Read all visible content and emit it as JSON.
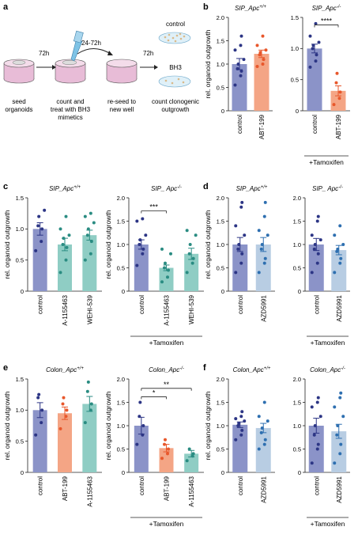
{
  "panels": {
    "a": "a",
    "b": "b",
    "c": "c",
    "d": "d",
    "e": "e",
    "f": "f"
  },
  "schematic": {
    "steps": [
      "seed\norganoids",
      "count and\ntreat with BH3\nmimetics",
      "re-seed to\nnew well",
      "count clonogenic\noutgrowth"
    ],
    "times": [
      "72h",
      "24-72h",
      "72h"
    ],
    "conditions": [
      "control",
      "BH3"
    ]
  },
  "common": {
    "ylabel": "rel. organoid outgrowth",
    "tamoxifen": "+Tamoxifen"
  },
  "colors": {
    "control": "#8b93c8",
    "control_dot": "#2c3585",
    "abt": "#f4a585",
    "abt_dot": "#e8572b",
    "a115": "#8fcdc4",
    "a115_dot": "#2a8c82",
    "wehi": "#8fcdc4",
    "wehi_dot": "#2a8c82",
    "azd": "#b8cde3",
    "azd_dot": "#2e6fb0"
  },
  "chart_data": [
    {
      "id": "b1",
      "type": "bar",
      "title": "SIP_Apc+/+",
      "categories": [
        "control",
        "ABT-199"
      ],
      "values": [
        1.0,
        1.22
      ],
      "errors": [
        0.12,
        0.08
      ],
      "points": [
        [
          0.55,
          0.75,
          0.85,
          0.9,
          1.0,
          1.1,
          1.3,
          1.4,
          1.6
        ],
        [
          0.95,
          1.0,
          1.1,
          1.2,
          1.25,
          1.3,
          1.4,
          1.6
        ]
      ],
      "ylim": [
        0,
        2.0
      ],
      "yticks": [
        0,
        0.5,
        1.0,
        1.5,
        2.0
      ],
      "ylabel": "rel. organoid outgrowth",
      "tamoxifen": false
    },
    {
      "id": "b2",
      "type": "bar",
      "title": "SIP_Apc-/-",
      "categories": [
        "control",
        "ABT-199"
      ],
      "values": [
        1.0,
        0.32
      ],
      "errors": [
        0.07,
        0.08
      ],
      "points": [
        [
          0.7,
          0.8,
          0.9,
          1.0,
          1.05,
          1.1,
          1.2,
          1.4
        ],
        [
          0.1,
          0.2,
          0.3,
          0.45,
          0.6
        ]
      ],
      "ylim": [
        0,
        1.5
      ],
      "yticks": [
        0,
        0.5,
        1.0,
        1.5
      ],
      "annotations": [
        {
          "from": 0,
          "to": 1,
          "label": "****",
          "y": 1.38
        }
      ],
      "tamoxifen": true
    },
    {
      "id": "c1",
      "type": "bar",
      "title": "SIP_Apc+/+",
      "categories": [
        "control",
        "A-1155463",
        "WEHI-539"
      ],
      "values": [
        1.0,
        0.75,
        0.9
      ],
      "errors": [
        0.1,
        0.1,
        0.08
      ],
      "points": [
        [
          0.65,
          0.8,
          1.0,
          1.05,
          1.2,
          1.3
        ],
        [
          0.3,
          0.5,
          0.7,
          0.75,
          0.85,
          0.9,
          1.0,
          1.2
        ],
        [
          0.5,
          0.6,
          0.8,
          0.9,
          1.0,
          1.1,
          1.2,
          1.25
        ]
      ],
      "ylim": [
        0,
        1.5
      ],
      "yticks": [
        0,
        0.5,
        1.0,
        1.5
      ],
      "ylabel": "rel. organoid outgrowth",
      "tamoxifen": false
    },
    {
      "id": "c2",
      "type": "bar",
      "title": "SIP_ Apc-/-",
      "categories": [
        "control",
        "A-1155463",
        "WEHI-539"
      ],
      "values": [
        1.0,
        0.5,
        0.8
      ],
      "errors": [
        0.1,
        0.06,
        0.12
      ],
      "points": [
        [
          0.55,
          0.8,
          0.9,
          1.0,
          1.1,
          1.2,
          1.5,
          1.55
        ],
        [
          0.2,
          0.3,
          0.45,
          0.5,
          0.6,
          0.8,
          0.9
        ],
        [
          0.4,
          0.6,
          0.7,
          0.8,
          1.0,
          1.2,
          1.3
        ]
      ],
      "ylim": [
        0,
        2.0
      ],
      "yticks": [
        0,
        0.5,
        1.0,
        1.5,
        2.0
      ],
      "annotations": [
        {
          "from": 0,
          "to": 1,
          "label": "***",
          "y": 1.72
        }
      ],
      "ylabel": "rel. organoid outgrowth",
      "tamoxifen": true
    },
    {
      "id": "d1",
      "type": "bar",
      "title": "SIP_Apc+/+",
      "categories": [
        "control",
        "AZD5991"
      ],
      "values": [
        1.0,
        1.0
      ],
      "errors": [
        0.15,
        0.15
      ],
      "points": [
        [
          0.4,
          0.6,
          0.8,
          0.9,
          1.0,
          1.2,
          1.4,
          1.8,
          1.9
        ],
        [
          0.4,
          0.6,
          0.7,
          0.9,
          1.0,
          1.2,
          1.3,
          1.6,
          1.9
        ]
      ],
      "ylim": [
        0,
        2.0
      ],
      "yticks": [
        0,
        0.5,
        1.0,
        1.5,
        2.0
      ],
      "ylabel": "rel. organoid outgrowth",
      "tamoxifen": false
    },
    {
      "id": "d2",
      "type": "bar",
      "title": "SIP_ Apc-/-",
      "categories": [
        "control",
        "AZD5991"
      ],
      "values": [
        1.0,
        0.88
      ],
      "errors": [
        0.13,
        0.1
      ],
      "points": [
        [
          0.4,
          0.6,
          0.8,
          0.9,
          1.0,
          1.1,
          1.2,
          1.5,
          1.6
        ],
        [
          0.4,
          0.6,
          0.7,
          0.85,
          0.9,
          1.0,
          1.2,
          1.4
        ]
      ],
      "ylim": [
        0,
        2.0
      ],
      "yticks": [
        0,
        0.5,
        1.0,
        1.5,
        2.0
      ],
      "tamoxifen": true
    },
    {
      "id": "e1",
      "type": "bar",
      "title": "Colon_Apc+/+",
      "categories": [
        "control",
        "ABT-199",
        "A-1155463"
      ],
      "values": [
        1.0,
        0.95,
        1.1
      ],
      "errors": [
        0.12,
        0.1,
        0.12
      ],
      "points": [
        [
          0.6,
          0.8,
          1.0,
          1.2,
          1.25
        ],
        [
          0.7,
          0.9,
          1.0,
          1.1,
          1.2
        ],
        [
          0.8,
          1.0,
          1.1,
          1.3,
          1.45
        ]
      ],
      "ylim": [
        0,
        1.5
      ],
      "yticks": [
        0,
        0.5,
        1.0,
        1.5
      ],
      "ylabel": "rel. organoid outgrowth",
      "tamoxifen": false
    },
    {
      "id": "e2",
      "type": "bar",
      "title": "Colon_Apc-/-",
      "categories": [
        "control",
        "ABT-199",
        "A-1155463"
      ],
      "values": [
        1.0,
        0.52,
        0.4
      ],
      "errors": [
        0.18,
        0.08,
        0.07
      ],
      "points": [
        [
          0.6,
          0.8,
          1.0,
          1.2,
          1.5
        ],
        [
          0.3,
          0.4,
          0.5,
          0.6,
          0.7
        ],
        [
          0.25,
          0.35,
          0.4,
          0.5
        ]
      ],
      "ylim": [
        0,
        2.0
      ],
      "yticks": [
        0,
        0.5,
        1.0,
        1.5,
        2.0
      ],
      "annotations": [
        {
          "from": 0,
          "to": 1,
          "label": "*",
          "y": 1.62
        },
        {
          "from": 0,
          "to": 2,
          "label": "**",
          "y": 1.8
        }
      ],
      "ylabel": "rel. organoid outgrowth",
      "tamoxifen": true
    },
    {
      "id": "f1",
      "type": "bar",
      "title": "Colon_Apc+/+",
      "categories": [
        "control",
        "AZD5991"
      ],
      "values": [
        1.02,
        0.95
      ],
      "errors": [
        0.06,
        0.1
      ],
      "points": [
        [
          0.7,
          0.8,
          0.9,
          1.0,
          1.05,
          1.1,
          1.15,
          1.2,
          1.3
        ],
        [
          0.5,
          0.6,
          0.7,
          0.85,
          0.95,
          1.1,
          1.2,
          1.5
        ]
      ],
      "ylim": [
        0,
        2.0
      ],
      "yticks": [
        0,
        0.5,
        1.0,
        1.5,
        2.0
      ],
      "ylabel": "rel. organoid outgrowth",
      "tamoxifen": false
    },
    {
      "id": "f2",
      "type": "bar",
      "title": "Colon_Apc-/-",
      "categories": [
        "control",
        "AZD5991"
      ],
      "values": [
        1.0,
        0.88
      ],
      "errors": [
        0.16,
        0.15
      ],
      "points": [
        [
          0.2,
          0.5,
          0.6,
          0.8,
          1.0,
          1.2,
          1.4,
          1.5,
          1.6
        ],
        [
          0.2,
          0.4,
          0.6,
          0.8,
          1.0,
          1.2,
          1.4,
          1.6,
          1.7
        ]
      ],
      "ylim": [
        0,
        2.0
      ],
      "yticks": [
        0,
        0.5,
        1.0,
        1.5,
        2.0
      ],
      "tamoxifen": true
    }
  ]
}
